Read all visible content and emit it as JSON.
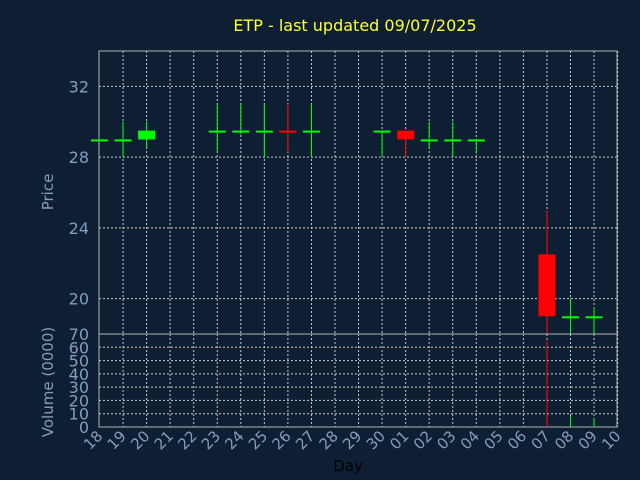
{
  "title": "ETP - last updated 09/07/2025",
  "colors": {
    "background": "#0f1f33",
    "text": "#7f9fbf",
    "title": "#ffff33",
    "frame": "#b0b0b0",
    "grid": "#c8c8c8",
    "up": "#00ff00",
    "down": "#ff0000",
    "xlabel": "#000000"
  },
  "chart_data": [
    {
      "type": "candlestick",
      "ylabel": "Price",
      "ylim": [
        18.0,
        34.0
      ],
      "yticks": [
        "20",
        "24",
        "28",
        "32"
      ],
      "grid": true,
      "categories": [
        "18",
        "19",
        "20",
        "21",
        "22",
        "23",
        "24",
        "25",
        "26",
        "27",
        "28",
        "29",
        "30",
        "01",
        "02",
        "03",
        "04",
        "05",
        "06",
        "07",
        "08",
        "09",
        "10"
      ],
      "candles": [
        {
          "day": "18",
          "open": 29.0,
          "close": 29.0,
          "high": 29.0,
          "low": 29.0
        },
        {
          "day": "19",
          "open": 29.0,
          "close": 29.0,
          "high": 30.0,
          "low": 28.0
        },
        {
          "day": "20",
          "open": 29.0,
          "close": 29.5,
          "high": 30.0,
          "low": 28.5
        },
        {
          "day": "23",
          "open": 29.5,
          "close": 29.5,
          "high": 31.0,
          "low": 28.3
        },
        {
          "day": "24",
          "open": 29.5,
          "close": 29.5,
          "high": 31.0,
          "low": 29.3
        },
        {
          "day": "25",
          "open": 29.5,
          "close": 29.5,
          "high": 31.0,
          "low": 28.0
        },
        {
          "day": "26",
          "open": 29.5,
          "close": 29.4,
          "high": 31.0,
          "low": 28.3
        },
        {
          "day": "27",
          "open": 29.5,
          "close": 29.5,
          "high": 31.0,
          "low": 28.0
        },
        {
          "day": "30",
          "open": 29.5,
          "close": 29.5,
          "high": 29.5,
          "low": 28.0
        },
        {
          "day": "01",
          "open": 29.5,
          "close": 29.0,
          "high": 29.5,
          "low": 28.0
        },
        {
          "day": "02",
          "open": 29.0,
          "close": 29.0,
          "high": 30.0,
          "low": 28.5
        },
        {
          "day": "03",
          "open": 29.0,
          "close": 29.0,
          "high": 30.0,
          "low": 28.0
        },
        {
          "day": "04",
          "open": 29.0,
          "close": 29.0,
          "high": 29.0,
          "low": 28.2
        },
        {
          "day": "07",
          "open": 22.5,
          "close": 19.0,
          "high": 25.0,
          "low": 18.0
        },
        {
          "day": "08",
          "open": 19.0,
          "close": 19.0,
          "high": 20.0,
          "low": 18.0
        },
        {
          "day": "09",
          "open": 19.0,
          "close": 19.0,
          "high": 19.5,
          "low": 18.0
        }
      ]
    },
    {
      "type": "bar",
      "ylabel": "Volume (0000)",
      "xlabel": "Day",
      "ylim": [
        0,
        70
      ],
      "yticks": [
        "0",
        "10",
        "20",
        "30",
        "40",
        "50",
        "60",
        "70"
      ],
      "grid": true,
      "categories": [
        "18",
        "19",
        "20",
        "21",
        "22",
        "23",
        "24",
        "25",
        "26",
        "27",
        "28",
        "29",
        "30",
        "01",
        "02",
        "03",
        "04",
        "05",
        "06",
        "07",
        "08",
        "09",
        "10"
      ],
      "bars": [
        {
          "day": "07",
          "value": 65,
          "direction": "down"
        },
        {
          "day": "08",
          "value": 8,
          "direction": "up"
        },
        {
          "day": "09",
          "value": 7,
          "direction": "up"
        }
      ]
    }
  ]
}
